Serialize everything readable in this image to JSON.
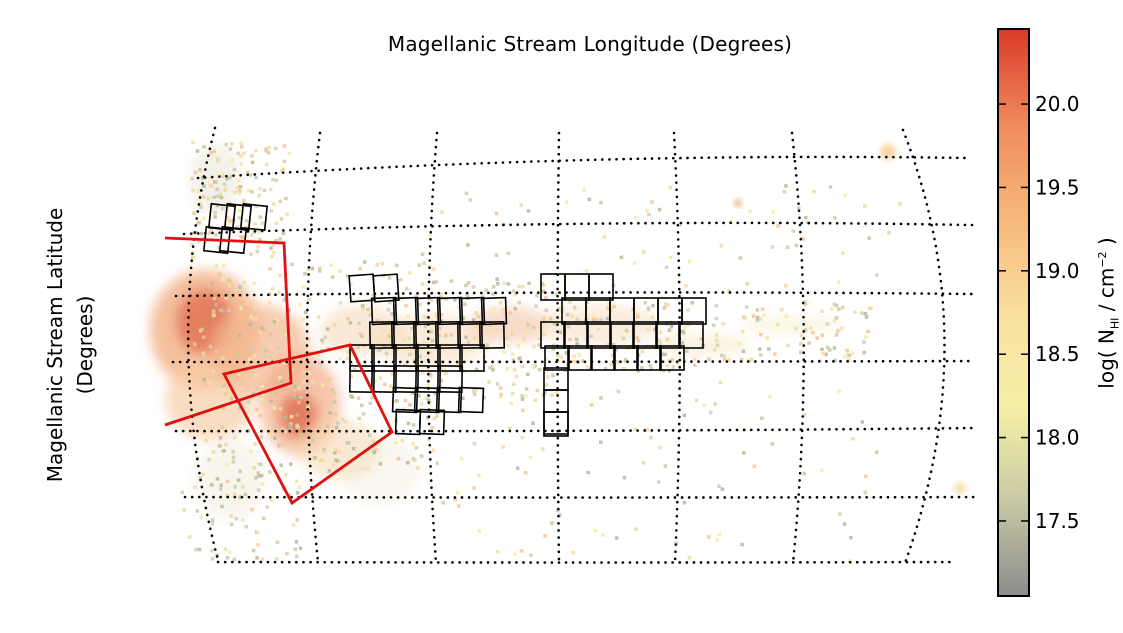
{
  "chart_data": {
    "type": "heatmap",
    "title": "Magellanic Stream Longitude (Degrees)",
    "ylabel_line1": "Magellanic Stream Latitude",
    "ylabel_line2": "(Degrees)",
    "colorbar": {
      "label_prefix": "log( N",
      "label_sub": "HI",
      "label_mid": " / cm",
      "label_sup": "−2",
      "label_suffix": " )",
      "range": [
        17.05,
        20.45
      ],
      "ticks": [
        "17.5",
        "18.0",
        "18.5",
        "19.0",
        "19.5",
        "20.0"
      ],
      "tick_values": [
        17.5,
        18.0,
        18.5,
        19.0,
        19.5,
        20.0
      ],
      "colors": [
        "#8c8c8c",
        "#c8c8a4",
        "#f5f0a6",
        "#f9dfa0",
        "#f6b87a",
        "#f08a5c",
        "#d83a2a"
      ]
    },
    "grid": true,
    "overlays": {
      "black_boxes": "survey fields",
      "red_outlines": 2
    }
  }
}
